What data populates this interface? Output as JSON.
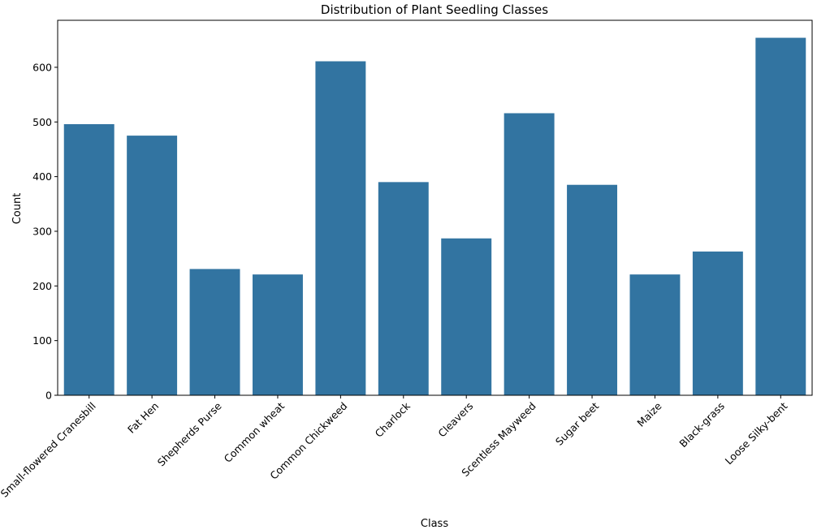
{
  "chart_data": {
    "type": "bar",
    "title": "Distribution of Plant Seedling Classes",
    "xlabel": "Class",
    "ylabel": "Count",
    "categories": [
      "Small-flowered Cranesbill",
      "Fat Hen",
      "Shepherds Purse",
      "Common wheat",
      "Common Chickweed",
      "Charlock",
      "Cleavers",
      "Scentless Mayweed",
      "Sugar beet",
      "Maize",
      "Black-grass",
      "Loose Silky-bent"
    ],
    "values": [
      496,
      475,
      231,
      221,
      611,
      390,
      287,
      516,
      385,
      221,
      263,
      654
    ],
    "ylim": [
      0,
      686
    ],
    "yticks": [
      0,
      100,
      200,
      300,
      400,
      500,
      600
    ],
    "bar_color": "#3274a1",
    "grid": false,
    "legend": "none"
  }
}
